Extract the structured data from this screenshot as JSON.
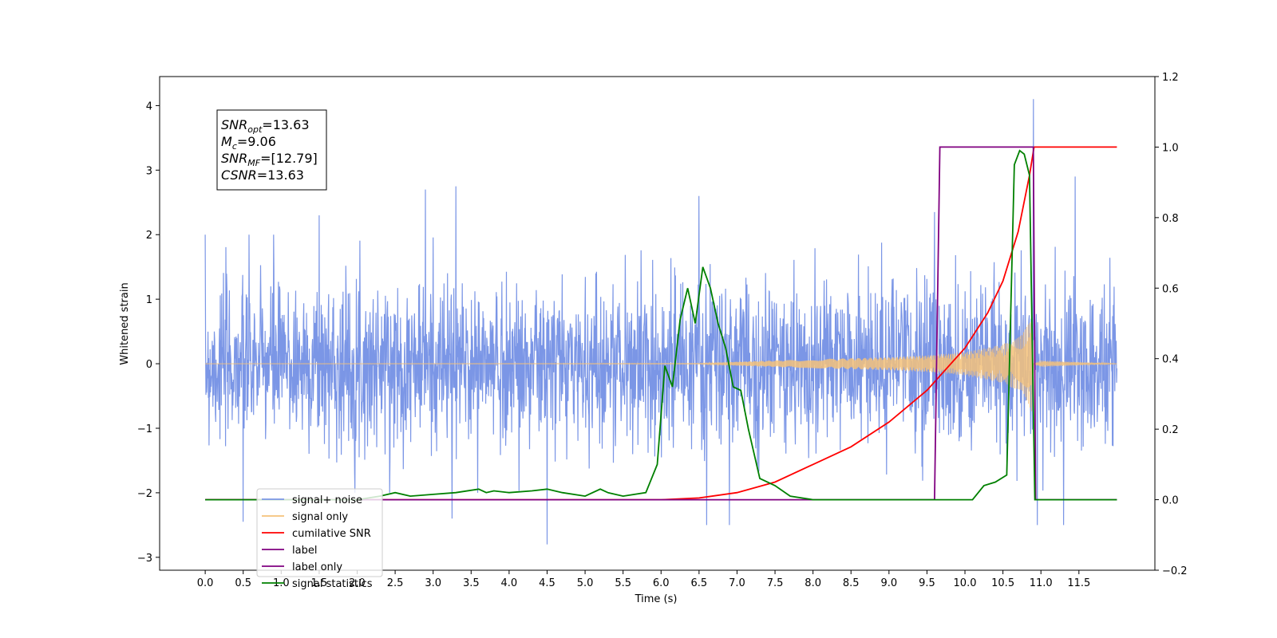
{
  "chart_data": {
    "type": "line",
    "title": "",
    "xlabel": "Time (s)",
    "ylabel": "Whitened strain",
    "xlim": [
      -0.6,
      12.5
    ],
    "ylim": [
      -3.2,
      4.45
    ],
    "y2lim": [
      -0.2,
      1.2
    ],
    "x_ticks": [
      0.0,
      0.5,
      1.0,
      1.5,
      2.0,
      2.5,
      3.0,
      3.5,
      4.0,
      4.5,
      5.0,
      5.5,
      6.0,
      6.5,
      7.0,
      7.5,
      8.0,
      8.5,
      9.0,
      9.5,
      10.0,
      10.5,
      11.0,
      11.5
    ],
    "x_tick_labels": [
      "0.0",
      "0.5",
      "1.0",
      "1.5",
      "2.0",
      "2.5",
      "3.0",
      "3.5",
      "4.0",
      "4.5",
      "5.0",
      "5.5",
      "6.0",
      "6.5",
      "7.0",
      "7.5",
      "8.0",
      "8.5",
      "9.0",
      "9.5",
      "10.0",
      "10.5",
      "11.0",
      "11.5"
    ],
    "y_ticks": [
      -3,
      -2,
      -1,
      0,
      1,
      2,
      3,
      4
    ],
    "y_tick_labels": [
      "−3",
      "−2",
      "−1",
      "0",
      "1",
      "2",
      "3",
      "4"
    ],
    "y2_ticks": [
      -0.2,
      0.0,
      0.2,
      0.4,
      0.6,
      0.8,
      1.0,
      1.2
    ],
    "y2_tick_labels": [
      "−0.2",
      "0.0",
      "0.2",
      "0.4",
      "0.6",
      "0.8",
      "1.0",
      "1.2"
    ],
    "grid": false,
    "legend_position": "bottom-left",
    "annotation": [
      {
        "base": "SNR",
        "sub": "opt",
        "value": "=13.63"
      },
      {
        "base": "M",
        "sub": "c",
        "value": "=9.06"
      },
      {
        "base": "SNR",
        "sub": "MF",
        "value": "=[12.79]"
      },
      {
        "base": "CSNR",
        "sub": "",
        "value": "=13.63"
      }
    ],
    "series": [
      {
        "name": "signal+ noise",
        "axis": "left",
        "color": "#7b96e6",
        "kind": "noise",
        "t_range": [
          0.0,
          12.0
        ],
        "envelope": 1.6,
        "spikes": [
          [
            0.5,
            -2.45
          ],
          [
            0.9,
            2.0
          ],
          [
            1.5,
            2.3
          ],
          [
            2.9,
            2.7
          ],
          [
            3.3,
            2.75
          ],
          [
            3.25,
            -2.4
          ],
          [
            4.5,
            -2.8
          ],
          [
            6.5,
            2.6
          ],
          [
            6.6,
            -2.5
          ],
          [
            6.9,
            -2.5
          ],
          [
            9.6,
            2.35
          ],
          [
            10.9,
            4.1
          ],
          [
            10.95,
            -2.5
          ],
          [
            11.3,
            -2.5
          ],
          [
            11.45,
            2.9
          ]
        ]
      },
      {
        "name": "signal only",
        "axis": "left",
        "color": "#f5c27a",
        "kind": "chirp",
        "t_range": [
          0.0,
          12.0
        ],
        "amplitude_points": [
          [
            0.0,
            0.0
          ],
          [
            6.5,
            0.005
          ],
          [
            7.0,
            0.03
          ],
          [
            8.0,
            0.07
          ],
          [
            9.0,
            0.1
          ],
          [
            9.5,
            0.13
          ],
          [
            10.0,
            0.18
          ],
          [
            10.5,
            0.3
          ],
          [
            10.75,
            0.45
          ],
          [
            10.88,
            0.75
          ],
          [
            10.9,
            0.0
          ],
          [
            11.0,
            0.05
          ],
          [
            12.0,
            0.0
          ]
        ]
      },
      {
        "name": "cumilative SNR",
        "axis": "right",
        "color": "#ff0000",
        "x": [
          0.0,
          5.5,
          6.0,
          6.5,
          7.0,
          7.5,
          8.0,
          8.5,
          9.0,
          9.5,
          10.0,
          10.3,
          10.5,
          10.7,
          10.85,
          10.91,
          11.0,
          12.0
        ],
        "values": [
          0.0,
          0.0,
          0.0,
          0.005,
          0.02,
          0.05,
          0.1,
          0.15,
          0.22,
          0.31,
          0.43,
          0.53,
          0.62,
          0.76,
          0.92,
          1.0,
          1.0,
          1.0
        ]
      },
      {
        "name": "label",
        "axis": "right",
        "color": "#800080",
        "x": [
          0.0,
          9.6,
          9.67,
          10.9,
          10.93,
          12.0
        ],
        "values": [
          0.0,
          0.0,
          1.0,
          1.0,
          0.0,
          0.0
        ]
      },
      {
        "name": "label only",
        "axis": "right",
        "color": "#800080",
        "hidden_in_plot": true,
        "x": [],
        "values": []
      },
      {
        "name": "signal statistics",
        "axis": "right",
        "color": "#008000",
        "x": [
          0.0,
          2.0,
          2.3,
          2.5,
          2.7,
          3.0,
          3.3,
          3.6,
          3.7,
          3.8,
          4.0,
          4.3,
          4.5,
          4.7,
          5.0,
          5.2,
          5.3,
          5.5,
          5.8,
          5.95,
          6.05,
          6.15,
          6.25,
          6.35,
          6.45,
          6.55,
          6.65,
          6.75,
          6.85,
          6.95,
          7.05,
          7.15,
          7.3,
          7.5,
          7.7,
          8.0,
          8.7,
          9.0,
          10.1,
          10.25,
          10.4,
          10.55,
          10.65,
          10.72,
          10.78,
          10.85,
          10.92,
          11.0,
          11.1,
          12.0
        ],
        "values": [
          0.0,
          0.0,
          0.01,
          0.02,
          0.01,
          0.015,
          0.02,
          0.03,
          0.02,
          0.025,
          0.02,
          0.025,
          0.03,
          0.02,
          0.01,
          0.03,
          0.02,
          0.01,
          0.02,
          0.1,
          0.38,
          0.32,
          0.51,
          0.6,
          0.5,
          0.66,
          0.6,
          0.5,
          0.43,
          0.32,
          0.31,
          0.2,
          0.06,
          0.04,
          0.01,
          0.0,
          0.0,
          0.0,
          0.0,
          0.04,
          0.05,
          0.07,
          0.95,
          0.99,
          0.98,
          0.92,
          0.0,
          0.0,
          0.0,
          0.0
        ]
      }
    ]
  }
}
